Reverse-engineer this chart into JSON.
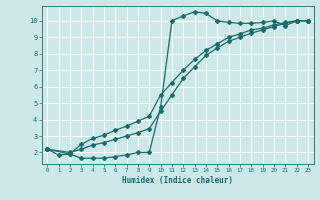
{
  "xlabel": "Humidex (Indice chaleur)",
  "background_color": "#cce8e8",
  "grid_color": "#ffffff",
  "line_color": "#1a6b6b",
  "xlim": [
    -0.5,
    23.5
  ],
  "ylim": [
    1.3,
    10.9
  ],
  "xticks": [
    0,
    1,
    2,
    3,
    4,
    5,
    6,
    7,
    8,
    9,
    10,
    11,
    12,
    13,
    14,
    15,
    16,
    17,
    18,
    19,
    20,
    21,
    22,
    23
  ],
  "yticks": [
    2,
    3,
    4,
    5,
    6,
    7,
    8,
    9,
    10
  ],
  "line1_x": [
    0,
    1,
    2,
    3,
    4,
    5,
    6,
    7,
    8,
    9,
    10,
    11,
    12,
    13,
    14,
    15,
    16,
    17,
    18,
    19,
    20,
    21,
    22,
    23
  ],
  "line1_y": [
    2.2,
    1.85,
    1.9,
    1.65,
    1.65,
    1.65,
    1.75,
    1.85,
    2.0,
    2.0,
    4.75,
    10.0,
    10.3,
    10.55,
    10.45,
    10.0,
    9.9,
    9.85,
    9.85,
    9.9,
    10.0,
    9.7,
    10.0,
    10.0
  ],
  "line2_x": [
    0,
    2,
    3,
    4,
    5,
    6,
    7,
    8,
    9,
    10,
    11,
    12,
    13,
    14,
    15,
    16,
    17,
    18,
    19,
    20,
    21,
    22,
    23
  ],
  "line2_y": [
    2.2,
    1.9,
    2.5,
    2.85,
    3.05,
    3.35,
    3.6,
    3.9,
    4.2,
    5.5,
    6.25,
    7.0,
    7.65,
    8.2,
    8.6,
    9.0,
    9.2,
    9.45,
    9.55,
    9.75,
    9.9,
    10.0,
    10.0
  ],
  "line3_x": [
    0,
    2,
    3,
    4,
    5,
    6,
    7,
    8,
    9,
    10,
    11,
    12,
    13,
    14,
    15,
    16,
    17,
    18,
    19,
    20,
    21,
    22,
    23
  ],
  "line3_y": [
    2.2,
    2.0,
    2.2,
    2.45,
    2.6,
    2.8,
    3.0,
    3.2,
    3.45,
    4.5,
    5.5,
    6.5,
    7.2,
    7.9,
    8.35,
    8.75,
    9.0,
    9.25,
    9.45,
    9.65,
    9.85,
    10.0,
    10.0
  ]
}
